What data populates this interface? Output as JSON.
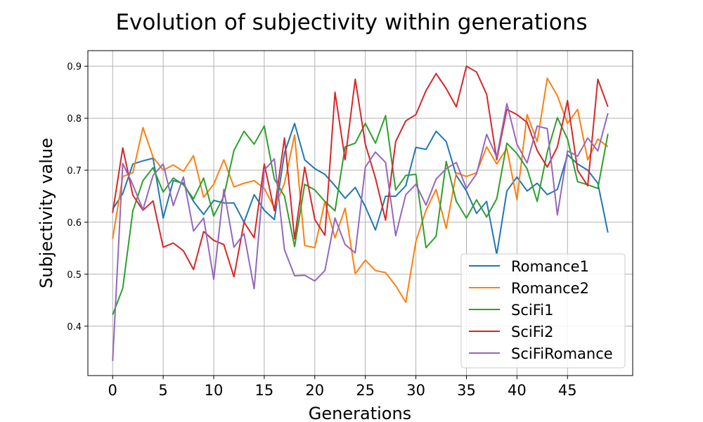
{
  "chart_data": {
    "type": "line",
    "title": "Evolution of subjectivity within generations",
    "xlabel": "Generations",
    "ylabel": "Subjectivity value",
    "xlim": [
      -2.45,
      51.45
    ],
    "ylim": [
      0.305,
      0.93
    ],
    "xticks": [
      0,
      5,
      10,
      15,
      20,
      25,
      30,
      35,
      40,
      45
    ],
    "yticks": [
      0.4,
      0.5,
      0.6,
      0.7,
      0.8,
      0.9
    ],
    "grid": true,
    "legend_position": "lower-right",
    "x": [
      0,
      1,
      2,
      3,
      4,
      5,
      6,
      7,
      8,
      9,
      10,
      11,
      12,
      13,
      14,
      15,
      16,
      17,
      18,
      19,
      20,
      21,
      22,
      23,
      24,
      25,
      26,
      27,
      28,
      29,
      30,
      31,
      32,
      33,
      34,
      35,
      36,
      37,
      38,
      39,
      40,
      41,
      42,
      43,
      44,
      45,
      46,
      47,
      48,
      49
    ],
    "series": [
      {
        "name": "Romance1",
        "color": "#1f77b4",
        "values": [
          0.625,
          0.655,
          0.712,
          0.718,
          0.723,
          0.608,
          0.68,
          0.675,
          0.64,
          0.615,
          0.642,
          0.637,
          0.637,
          0.6,
          0.653,
          0.623,
          0.605,
          0.733,
          0.79,
          0.72,
          0.703,
          0.692,
          0.67,
          0.646,
          0.667,
          0.63,
          0.585,
          0.65,
          0.65,
          0.67,
          0.744,
          0.74,
          0.775,
          0.755,
          0.69,
          0.66,
          0.617,
          0.64,
          0.538,
          0.66,
          0.687,
          0.66,
          0.675,
          0.653,
          0.663,
          0.73,
          0.712,
          0.7,
          0.675,
          0.58
        ]
      },
      {
        "name": "Romance2",
        "color": "#ff7f0e",
        "values": [
          0.568,
          0.688,
          0.695,
          0.782,
          0.725,
          0.7,
          0.71,
          0.698,
          0.728,
          0.648,
          0.673,
          0.72,
          0.668,
          0.675,
          0.68,
          0.665,
          0.628,
          0.675,
          0.768,
          0.555,
          0.551,
          0.64,
          0.57,
          0.627,
          0.501,
          0.527,
          0.507,
          0.503,
          0.478,
          0.446,
          0.563,
          0.623,
          0.663,
          0.588,
          0.695,
          0.688,
          0.695,
          0.745,
          0.712,
          0.742,
          0.643,
          0.807,
          0.755,
          0.877,
          0.843,
          0.79,
          0.817,
          0.72,
          0.76,
          0.745
        ]
      },
      {
        "name": "SciFi1",
        "color": "#2ca02c",
        "values": [
          0.422,
          0.473,
          0.622,
          0.68,
          0.705,
          0.658,
          0.685,
          0.672,
          0.645,
          0.685,
          0.612,
          0.65,
          0.738,
          0.775,
          0.75,
          0.785,
          0.683,
          0.65,
          0.553,
          0.673,
          0.662,
          0.64,
          0.622,
          0.745,
          0.752,
          0.79,
          0.752,
          0.805,
          0.662,
          0.69,
          0.692,
          0.551,
          0.573,
          0.717,
          0.64,
          0.608,
          0.643,
          0.61,
          0.645,
          0.752,
          0.732,
          0.703,
          0.64,
          0.735,
          0.801,
          0.76,
          0.678,
          0.672,
          0.665,
          0.77
        ]
      },
      {
        "name": "SciFi2",
        "color": "#d62728",
        "values": [
          0.618,
          0.743,
          0.652,
          0.623,
          0.641,
          0.552,
          0.56,
          0.545,
          0.509,
          0.582,
          0.565,
          0.557,
          0.495,
          0.6,
          0.57,
          0.712,
          0.622,
          0.762,
          0.568,
          0.706,
          0.605,
          0.575,
          0.85,
          0.72,
          0.875,
          0.75,
          0.685,
          0.604,
          0.755,
          0.795,
          0.807,
          0.853,
          0.886,
          0.857,
          0.822,
          0.9,
          0.889,
          0.846,
          0.72,
          0.817,
          0.807,
          0.792,
          0.738,
          0.706,
          0.745,
          0.834,
          0.7,
          0.67,
          0.875,
          0.822
        ]
      },
      {
        "name": "SciFiRomance",
        "color": "#9467bd",
        "values": [
          0.333,
          0.713,
          0.672,
          0.624,
          0.69,
          0.712,
          0.632,
          0.687,
          0.583,
          0.608,
          0.49,
          0.663,
          0.552,
          0.578,
          0.472,
          0.7,
          0.722,
          0.547,
          0.497,
          0.498,
          0.487,
          0.507,
          0.608,
          0.557,
          0.541,
          0.706,
          0.735,
          0.715,
          0.574,
          0.653,
          0.673,
          0.633,
          0.683,
          0.703,
          0.715,
          0.665,
          0.693,
          0.769,
          0.725,
          0.828,
          0.75,
          0.714,
          0.785,
          0.78,
          0.614,
          0.737,
          0.727,
          0.762,
          0.737,
          0.81
        ]
      }
    ]
  }
}
